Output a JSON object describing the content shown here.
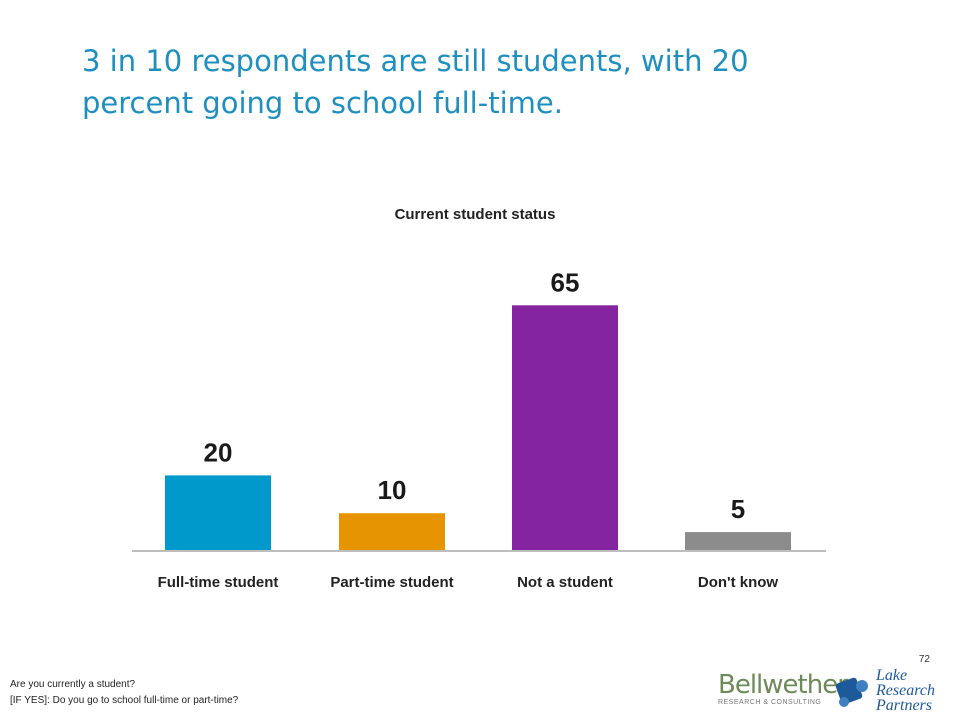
{
  "slide": {
    "headline": "3 in 10 respondents are still students, with 20 percent going to school full-time.",
    "page_number": "72",
    "question_line1": "Are you currently a student?",
    "question_line2": "[IF YES]:  Do you go to school full-time or part-time?"
  },
  "logos": {
    "bellwether_name": "Bellwether",
    "bellwether_sub": "RESEARCH & CONSULTING",
    "lake_line1": "Lake",
    "lake_line2": "Research",
    "lake_line3": "Partners"
  },
  "chart_data": {
    "type": "bar",
    "title": "Current student status",
    "categories": [
      "Full-time student",
      "Part-time student",
      "Not a student",
      "Don't know"
    ],
    "values": [
      20,
      10,
      65,
      5
    ],
    "colors": [
      "#0099cc",
      "#e69500",
      "#8424a0",
      "#8c8c8c"
    ],
    "ylim": [
      0,
      70
    ],
    "grid": false,
    "legend": "none",
    "xlabel": "",
    "ylabel": ""
  }
}
